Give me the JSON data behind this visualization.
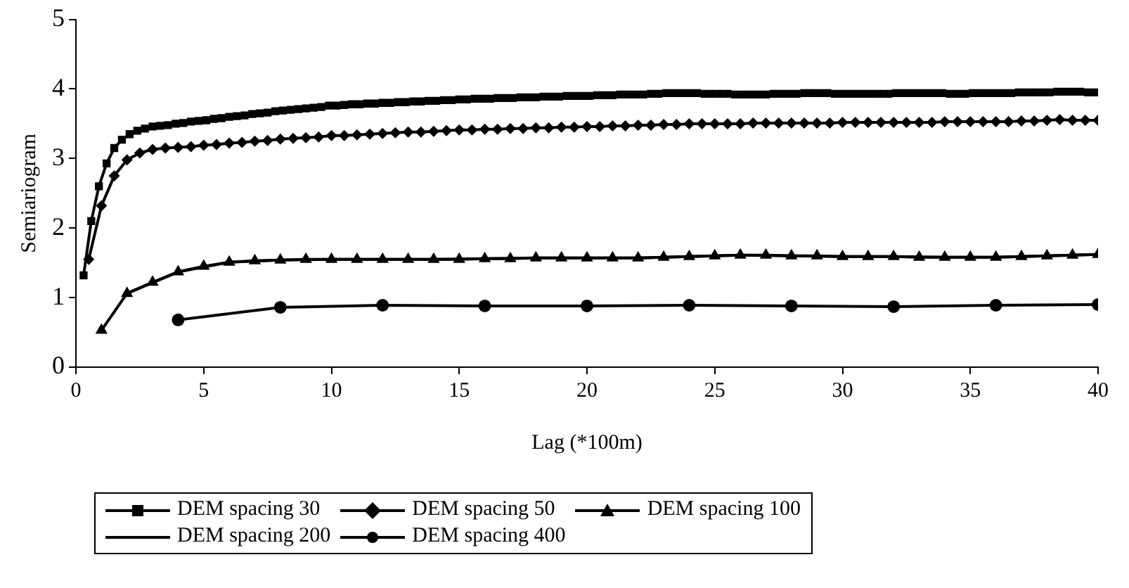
{
  "chart_data": {
    "type": "line",
    "xlabel": "Lag (*100m)",
    "ylabel": "Semiariogram",
    "xlim": [
      0,
      40
    ],
    "xticks": [
      0,
      5,
      10,
      15,
      20,
      25,
      30,
      35,
      40
    ],
    "ylim": [
      0,
      5
    ],
    "yticks": [
      0,
      1,
      2,
      3,
      4,
      5
    ],
    "grid": false,
    "legend": "bottom",
    "series": [
      {
        "name": "DEM spacing 30",
        "color": "#000000",
        "marker": "square",
        "x": [
          0.3,
          0.6,
          0.9,
          1.2,
          1.5,
          1.8,
          2.1,
          2.4,
          2.7,
          3.0,
          3.3,
          3.6,
          3.9,
          4.2,
          4.5,
          4.8,
          5.1,
          5.4,
          5.7,
          6.0,
          6.3,
          6.6,
          6.9,
          7.2,
          7.5,
          7.8,
          8.1,
          8.4,
          8.7,
          9.0,
          9.3,
          9.6,
          9.9,
          10.2,
          10.5,
          10.8,
          11.1,
          11.4,
          11.7,
          12.0,
          12.3,
          12.6,
          12.9,
          13.2,
          13.5,
          13.8,
          14.1,
          14.4,
          14.7,
          15.0,
          15.3,
          15.6,
          15.9,
          16.2,
          16.5,
          16.8,
          17.1,
          17.4,
          17.7,
          18.0,
          18.3,
          18.6,
          18.9,
          19.2,
          19.5,
          19.8,
          20.1,
          20.4,
          20.7,
          21.0,
          21.3,
          21.6,
          21.9,
          22.2,
          22.5,
          22.8,
          23.1,
          23.4,
          23.7,
          24.0,
          24.3,
          24.6,
          24.9,
          25.2,
          25.5,
          25.8,
          26.1,
          26.4,
          26.7,
          27.0,
          27.3,
          27.6,
          27.9,
          28.2,
          28.5,
          28.8,
          29.1,
          29.4,
          29.7,
          30.0,
          30.3,
          30.6,
          30.9,
          31.2,
          31.5,
          31.8,
          32.1,
          32.4,
          32.7,
          33.0,
          33.3,
          33.6,
          33.9,
          34.2,
          34.5,
          34.8,
          35.1,
          35.4,
          35.7,
          36.0,
          36.3,
          36.6,
          36.9,
          37.2,
          37.5,
          37.8,
          38.1,
          38.4,
          38.7,
          39.0,
          39.3,
          39.6,
          39.9
        ],
        "values": [
          1.32,
          2.1,
          2.6,
          2.93,
          3.15,
          3.27,
          3.35,
          3.4,
          3.43,
          3.46,
          3.47,
          3.48,
          3.5,
          3.51,
          3.53,
          3.54,
          3.55,
          3.57,
          3.58,
          3.6,
          3.61,
          3.62,
          3.64,
          3.65,
          3.66,
          3.68,
          3.69,
          3.7,
          3.71,
          3.72,
          3.73,
          3.74,
          3.76,
          3.76,
          3.77,
          3.78,
          3.78,
          3.79,
          3.79,
          3.8,
          3.8,
          3.81,
          3.81,
          3.82,
          3.82,
          3.83,
          3.83,
          3.84,
          3.84,
          3.85,
          3.85,
          3.86,
          3.86,
          3.86,
          3.87,
          3.87,
          3.87,
          3.88,
          3.88,
          3.88,
          3.89,
          3.89,
          3.89,
          3.9,
          3.9,
          3.9,
          3.9,
          3.91,
          3.91,
          3.91,
          3.92,
          3.92,
          3.92,
          3.92,
          3.93,
          3.93,
          3.94,
          3.94,
          3.94,
          3.94,
          3.94,
          3.93,
          3.93,
          3.93,
          3.93,
          3.92,
          3.92,
          3.92,
          3.92,
          3.92,
          3.93,
          3.93,
          3.93,
          3.93,
          3.94,
          3.94,
          3.94,
          3.94,
          3.93,
          3.93,
          3.93,
          3.93,
          3.93,
          3.93,
          3.93,
          3.93,
          3.94,
          3.94,
          3.94,
          3.94,
          3.94,
          3.94,
          3.94,
          3.93,
          3.93,
          3.93,
          3.94,
          3.94,
          3.94,
          3.94,
          3.94,
          3.94,
          3.95,
          3.95,
          3.95,
          3.95,
          3.95,
          3.96,
          3.96,
          3.96,
          3.96,
          3.95,
          3.95
        ]
      },
      {
        "name": "DEM spacing 50",
        "color": "#000000",
        "marker": "diamond",
        "x": [
          0.5,
          1,
          1.5,
          2,
          2.5,
          3,
          3.5,
          4,
          4.5,
          5,
          5.5,
          6,
          6.5,
          7,
          7.5,
          8,
          8.5,
          9,
          9.5,
          10,
          10.5,
          11,
          11.5,
          12,
          12.5,
          13,
          13.5,
          14,
          14.5,
          15,
          15.5,
          16,
          16.5,
          17,
          17.5,
          18,
          18.5,
          19,
          19.5,
          20,
          20.5,
          21,
          21.5,
          22,
          22.5,
          23,
          23.5,
          24,
          24.5,
          25,
          25.5,
          26,
          26.5,
          27,
          27.5,
          28,
          28.5,
          29,
          29.5,
          30,
          30.5,
          31,
          31.5,
          32,
          32.5,
          33,
          33.5,
          34,
          34.5,
          35,
          35.5,
          36,
          36.5,
          37,
          37.5,
          38,
          38.5,
          39,
          39.5,
          40
        ],
        "values": [
          1.55,
          2.32,
          2.75,
          2.98,
          3.08,
          3.13,
          3.15,
          3.16,
          3.17,
          3.19,
          3.2,
          3.22,
          3.23,
          3.25,
          3.26,
          3.28,
          3.29,
          3.3,
          3.31,
          3.33,
          3.33,
          3.34,
          3.35,
          3.36,
          3.37,
          3.38,
          3.38,
          3.39,
          3.4,
          3.41,
          3.41,
          3.42,
          3.42,
          3.43,
          3.43,
          3.44,
          3.44,
          3.45,
          3.45,
          3.46,
          3.46,
          3.47,
          3.47,
          3.48,
          3.48,
          3.49,
          3.49,
          3.5,
          3.5,
          3.5,
          3.5,
          3.5,
          3.51,
          3.51,
          3.51,
          3.51,
          3.51,
          3.51,
          3.51,
          3.52,
          3.52,
          3.52,
          3.52,
          3.52,
          3.52,
          3.52,
          3.52,
          3.53,
          3.53,
          3.53,
          3.53,
          3.53,
          3.53,
          3.54,
          3.54,
          3.55,
          3.56,
          3.55,
          3.55,
          3.55
        ]
      },
      {
        "name": "DEM spacing 100",
        "color": "#000000",
        "marker": "triangle",
        "x": [
          1,
          2,
          3,
          4,
          5,
          6,
          7,
          8,
          9,
          10,
          11,
          12,
          13,
          14,
          15,
          16,
          17,
          18,
          19,
          20,
          21,
          22,
          23,
          24,
          25,
          26,
          27,
          28,
          29,
          30,
          31,
          32,
          33,
          34,
          35,
          36,
          37,
          38,
          39,
          40
        ],
        "values": [
          0.53,
          1.06,
          1.22,
          1.37,
          1.45,
          1.51,
          1.53,
          1.54,
          1.55,
          1.55,
          1.55,
          1.55,
          1.55,
          1.55,
          1.55,
          1.56,
          1.56,
          1.57,
          1.57,
          1.57,
          1.57,
          1.57,
          1.58,
          1.59,
          1.6,
          1.61,
          1.61,
          1.6,
          1.6,
          1.59,
          1.59,
          1.59,
          1.58,
          1.58,
          1.58,
          1.58,
          1.59,
          1.6,
          1.61,
          1.62
        ]
      },
      {
        "name": "DEM spacing 200",
        "color": "#000000",
        "marker": "none",
        "x": [
          2,
          4,
          6,
          8,
          10,
          12,
          14,
          16,
          18,
          20,
          22,
          24,
          26,
          28,
          30,
          32,
          34,
          36,
          38,
          40
        ],
        "values": [
          1.06,
          1.37,
          1.51,
          1.54,
          1.55,
          1.55,
          1.55,
          1.56,
          1.57,
          1.57,
          1.57,
          1.59,
          1.61,
          1.6,
          1.59,
          1.59,
          1.58,
          1.58,
          1.6,
          1.62
        ]
      },
      {
        "name": "DEM spacing 400",
        "color": "#000000",
        "marker": "circle",
        "x": [
          4,
          8,
          12,
          16,
          20,
          24,
          28,
          32,
          36,
          40
        ],
        "values": [
          0.68,
          0.86,
          0.89,
          0.88,
          0.88,
          0.89,
          0.88,
          0.87,
          0.89,
          0.9
        ]
      }
    ]
  }
}
